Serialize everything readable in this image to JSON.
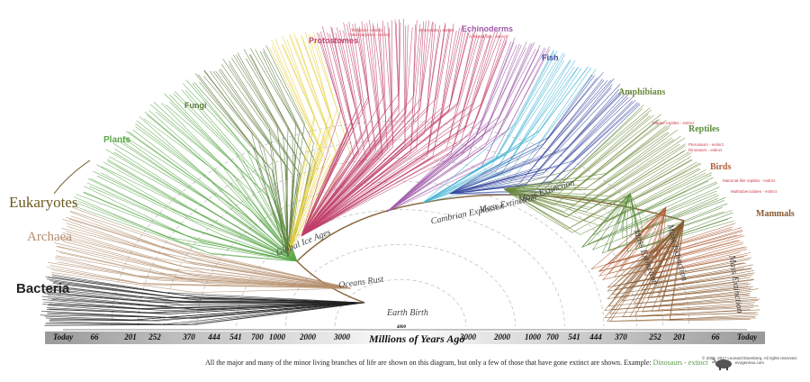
{
  "clades": {
    "bacteria": {
      "label": "Bacteria",
      "color": "#222222"
    },
    "archaea": {
      "label": "Archaea",
      "color": "#b48e6c"
    },
    "eukaryotes": {
      "label": "Eukaryotes",
      "color": "#6b5a20"
    },
    "plants": {
      "label": "Plants",
      "color": "#5aa84a"
    },
    "fungi": {
      "label": "Fungi",
      "color": "#5a7a3a"
    },
    "protostomes": {
      "label": "Protostomes",
      "color": "#c0406a"
    },
    "echinoderms": {
      "label": "Echinoderms",
      "color": "#a05aa8"
    },
    "fish": {
      "label": "Fish",
      "color": "#3a4aa0"
    },
    "amphibians": {
      "label": "Amphibians",
      "color": "#6a8a3a"
    },
    "reptiles": {
      "label": "Reptiles",
      "color": "#5a8a3a"
    },
    "birds": {
      "label": "Birds",
      "color": "#b0603a"
    },
    "mammals": {
      "label": "Mammals",
      "color": "#8a5a30"
    }
  },
  "extinct_labels": {
    "trilobites": "Trilobites - extinct",
    "sea_scorpions": "Sea scorpions - extinct",
    "ammonites": "Ammonites - extinct",
    "armored_fish": "Armored fish - extinct",
    "marine_reptiles": "Marine reptiles - extinct",
    "pterosaurs": "Pterosaurs - extinct",
    "dinosaurs": "Dinosaurs - extinct",
    "mammal_like": "Mammal-like reptiles - extinct",
    "multituberculates": "Multituberculates - extinct"
  },
  "events": {
    "global_ice_ages": "Global Ice Ages",
    "cambrian": "Cambrian Explosion",
    "mass1": "Mass Extinction",
    "mass2": "Mass Extinction",
    "mass3": "Mass Extinction",
    "mass4": "Mass Extinction",
    "mass5": "Mass Extinction",
    "oceans_rust": "Oceans Rust",
    "earth_birth": "Earth Birth"
  },
  "axis": {
    "title": "Millions of Years Ago",
    "center_value": "4000",
    "left_ticks": [
      "Today",
      "66",
      "201",
      "252",
      "370",
      "444",
      "541",
      "700",
      "1000",
      "2000",
      "3000"
    ],
    "right_ticks": [
      "3000",
      "2000",
      "1000",
      "700",
      "541",
      "444",
      "370",
      "252",
      "201",
      "66",
      "Today"
    ]
  },
  "caption": {
    "text": "All the major and many of the minor living branches of life are shown on this diagram, but only a few of those that have gone extinct are shown. Example:",
    "example": "Dinosaurs - extinct"
  },
  "copyright": {
    "line1": "© 2008, 2017 Leonard Eisenberg. All rights reserved.",
    "line2": "evogeneao.com"
  }
}
